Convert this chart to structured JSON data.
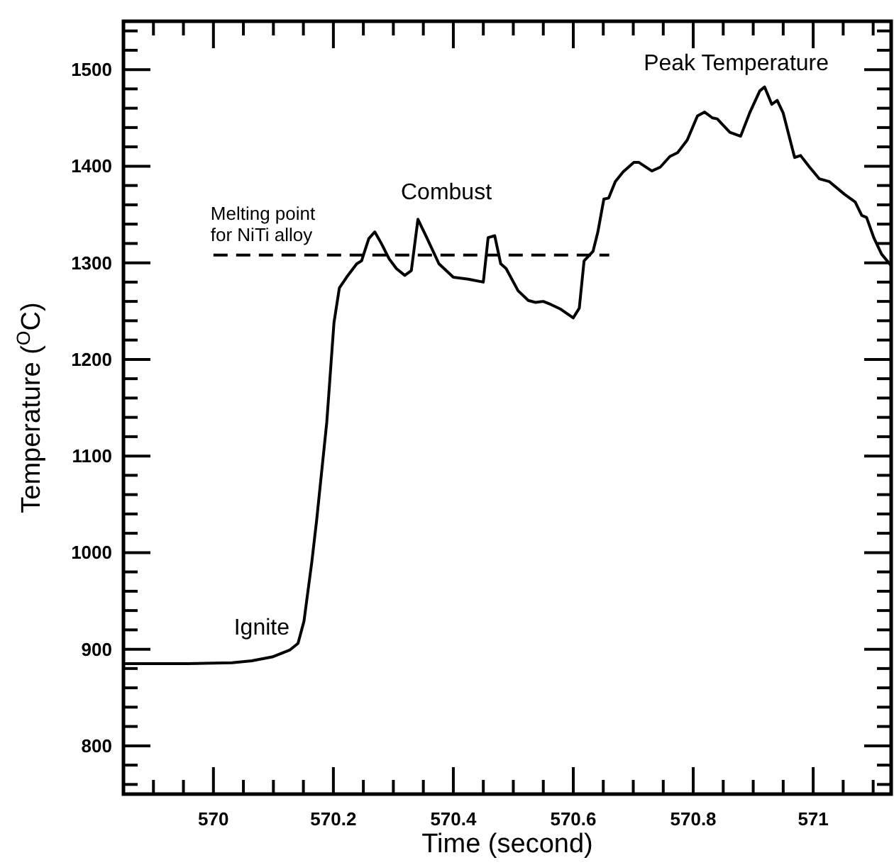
{
  "chart_data": {
    "type": "line",
    "xlabel": "Time (second)",
    "ylabel": "Temperature ($^{O}$C)",
    "xlim": [
      569.85,
      571.13
    ],
    "ylim": [
      750,
      1550
    ],
    "xticks": [
      {
        "value": 569.9,
        "label": null
      },
      {
        "value": 569.95,
        "label": null
      },
      570,
      {
        "value": 570.05,
        "label": null
      },
      {
        "value": 570.1,
        "label": null
      },
      {
        "value": 570.15,
        "label": null
      },
      570.2,
      {
        "value": 570.25,
        "label": null
      },
      {
        "value": 570.3,
        "label": null
      },
      {
        "value": 570.35,
        "label": null
      },
      570.4,
      {
        "value": 570.45,
        "label": null
      },
      {
        "value": 570.5,
        "label": null
      },
      {
        "value": 570.55,
        "label": null
      },
      570.6,
      {
        "value": 570.65,
        "label": null
      },
      {
        "value": 570.7,
        "label": null
      },
      {
        "value": 570.75,
        "label": null
      },
      570.8,
      {
        "value": 570.85,
        "label": null
      },
      {
        "value": 570.9,
        "label": null
      },
      {
        "value": 570.95,
        "label": null
      },
      571,
      {
        "value": 571.05,
        "label": null
      },
      {
        "value": 571.1,
        "label": null
      }
    ],
    "yticks": [
      {
        "value": 760,
        "label": null
      },
      {
        "value": 780,
        "label": null
      },
      800,
      {
        "value": 820,
        "label": null
      },
      {
        "value": 840,
        "label": null
      },
      {
        "value": 860,
        "label": null
      },
      {
        "value": 880,
        "label": null
      },
      900,
      {
        "value": 920,
        "label": null
      },
      {
        "value": 940,
        "label": null
      },
      {
        "value": 960,
        "label": null
      },
      {
        "value": 980,
        "label": null
      },
      1000,
      {
        "value": 1020,
        "label": null
      },
      {
        "value": 1040,
        "label": null
      },
      {
        "value": 1060,
        "label": null
      },
      {
        "value": 1080,
        "label": null
      },
      1100,
      {
        "value": 1120,
        "label": null
      },
      {
        "value": 1140,
        "label": null
      },
      {
        "value": 1160,
        "label": null
      },
      {
        "value": 1180,
        "label": null
      },
      1200,
      {
        "value": 1220,
        "label": null
      },
      {
        "value": 1240,
        "label": null
      },
      {
        "value": 1260,
        "label": null
      },
      {
        "value": 1280,
        "label": null
      },
      1300,
      {
        "value": 1320,
        "label": null
      },
      {
        "value": 1340,
        "label": null
      },
      {
        "value": 1360,
        "label": null
      },
      {
        "value": 1380,
        "label": null
      },
      1400,
      {
        "value": 1420,
        "label": null
      },
      {
        "value": 1440,
        "label": null
      },
      {
        "value": 1460,
        "label": null
      },
      {
        "value": 1480,
        "label": null
      },
      1500,
      {
        "value": 1520,
        "label": null
      },
      {
        "value": 1540,
        "label": null
      }
    ],
    "grid": false,
    "marker": "none",
    "series": [
      {
        "color": "#000000",
        "line_style": "solid",
        "x": [
          569.85,
          569.957,
          570.031,
          570.064,
          570.098,
          570.127,
          570.141,
          570.151,
          570.164,
          570.172,
          570.189,
          570.201,
          570.21,
          570.222,
          570.239,
          570.247,
          570.259,
          570.269,
          570.28,
          570.293,
          570.305,
          570.319,
          570.33,
          570.341,
          570.355,
          570.376,
          570.4,
          570.425,
          570.45,
          570.458,
          570.469,
          570.479,
          570.488,
          570.508,
          570.525,
          570.537,
          570.55,
          570.562,
          570.579,
          570.6,
          570.61,
          570.618,
          570.633,
          570.641,
          570.651,
          570.659,
          570.67,
          570.683,
          570.701,
          570.709,
          570.731,
          570.745,
          570.761,
          570.774,
          570.79,
          570.807,
          570.819,
          570.832,
          570.84,
          570.861,
          570.879,
          570.894,
          570.911,
          570.919,
          570.931,
          570.94,
          570.95,
          570.969,
          570.979,
          570.994,
          571.01,
          571.027,
          571.052,
          571.07,
          571.081,
          571.089,
          571.101,
          571.114,
          571.13
        ],
        "values": [
          885,
          885,
          886,
          888,
          892,
          899,
          906,
          929,
          990,
          1033,
          1135,
          1238,
          1274,
          1285,
          1299,
          1302,
          1325,
          1332,
          1320,
          1304,
          1294,
          1287,
          1292,
          1345,
          1327,
          1299,
          1285,
          1283,
          1280,
          1326,
          1328,
          1299,
          1294,
          1271,
          1261,
          1259,
          1260,
          1257,
          1252,
          1243,
          1253,
          1302,
          1312,
          1332,
          1366,
          1367,
          1384,
          1394,
          1404,
          1404,
          1395,
          1399,
          1410,
          1414,
          1427,
          1452,
          1456,
          1450,
          1449,
          1435,
          1431,
          1455,
          1478,
          1482,
          1464,
          1468,
          1455,
          1409,
          1411,
          1399,
          1387,
          1384,
          1371,
          1363,
          1349,
          1347,
          1326,
          1309,
          1297
        ]
      },
      {
        "color": "#000000",
        "line_style": "dashed",
        "x": [
          570.0,
          570.66
        ],
        "values": [
          1308,
          1308
        ]
      }
    ],
    "annotations": [
      {
        "text": "Ignite",
        "x": 570.141,
        "y": 906
      },
      {
        "text": "Combust",
        "x": 570.341,
        "y": 1345
      },
      {
        "text": "Peak Temperature",
        "x": 570.919,
        "y": 1482
      },
      {
        "text": "Melting point\nfor NiTi alloy",
        "x": 570.0,
        "y": 1308
      }
    ]
  }
}
